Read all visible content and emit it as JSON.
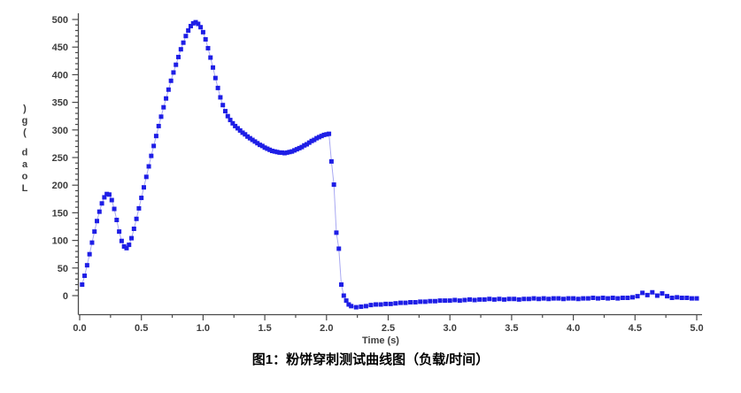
{
  "figure": {
    "caption": "图1：粉饼穿刺测试曲线图（负载/时间）"
  },
  "chart_data": {
    "type": "scatter",
    "title": "",
    "xlabel": "Time (s)",
    "ylabel": "Load (g)",
    "xlim": [
      0,
      5.0
    ],
    "ylim": [
      -37,
      507
    ],
    "x_tick_labels": [
      "0.0",
      "0.5",
      "1.0",
      "1.5",
      "2.0",
      "2.5",
      "3.0",
      "3.5",
      "4.0",
      "4.5",
      "5.0"
    ],
    "x_ticks": [
      0,
      0.5,
      1,
      1.5,
      2,
      2.5,
      3,
      3.5,
      4,
      4.5,
      5
    ],
    "x_minor_step": 0.25,
    "y_tick_labels": [
      "0",
      "50",
      "100",
      "150",
      "200",
      "250",
      "300",
      "350",
      "400",
      "450",
      "500"
    ],
    "y_ticks": [
      0,
      50,
      100,
      150,
      200,
      250,
      300,
      350,
      400,
      450,
      500
    ],
    "y_minor_step": 10,
    "grid": false,
    "legend": null,
    "marker": "square",
    "marker_color": "#1e1ee6",
    "line_color": "#a8a8f2",
    "axis_color": "#4a4a4a",
    "tick_label_color": "#3d3d3d",
    "points": [
      [
        0.02,
        20
      ],
      [
        0.04,
        36
      ],
      [
        0.06,
        55
      ],
      [
        0.08,
        75
      ],
      [
        0.1,
        96
      ],
      [
        0.12,
        116
      ],
      [
        0.14,
        135
      ],
      [
        0.16,
        152
      ],
      [
        0.18,
        167
      ],
      [
        0.2,
        178
      ],
      [
        0.22,
        184
      ],
      [
        0.24,
        183
      ],
      [
        0.26,
        173
      ],
      [
        0.28,
        157
      ],
      [
        0.3,
        137
      ],
      [
        0.32,
        116
      ],
      [
        0.34,
        99
      ],
      [
        0.36,
        89
      ],
      [
        0.38,
        86
      ],
      [
        0.4,
        92
      ],
      [
        0.42,
        104
      ],
      [
        0.44,
        121
      ],
      [
        0.46,
        139
      ],
      [
        0.48,
        158
      ],
      [
        0.5,
        177
      ],
      [
        0.52,
        196
      ],
      [
        0.54,
        215
      ],
      [
        0.56,
        234
      ],
      [
        0.58,
        253
      ],
      [
        0.6,
        271
      ],
      [
        0.62,
        289
      ],
      [
        0.64,
        307
      ],
      [
        0.66,
        324
      ],
      [
        0.68,
        341
      ],
      [
        0.7,
        357
      ],
      [
        0.72,
        373
      ],
      [
        0.74,
        389
      ],
      [
        0.76,
        404
      ],
      [
        0.78,
        418
      ],
      [
        0.8,
        432
      ],
      [
        0.82,
        446
      ],
      [
        0.84,
        458
      ],
      [
        0.86,
        470
      ],
      [
        0.88,
        480
      ],
      [
        0.9,
        488
      ],
      [
        0.92,
        493
      ],
      [
        0.94,
        495
      ],
      [
        0.96,
        492
      ],
      [
        0.98,
        486
      ],
      [
        1.0,
        477
      ],
      [
        1.02,
        464
      ],
      [
        1.04,
        448
      ],
      [
        1.06,
        431
      ],
      [
        1.08,
        413
      ],
      [
        1.1,
        394
      ],
      [
        1.12,
        376
      ],
      [
        1.14,
        359
      ],
      [
        1.16,
        345
      ],
      [
        1.18,
        334
      ],
      [
        1.2,
        325
      ],
      [
        1.22,
        318
      ],
      [
        1.24,
        312
      ],
      [
        1.26,
        307
      ],
      [
        1.28,
        303
      ],
      [
        1.3,
        299
      ],
      [
        1.32,
        295
      ],
      [
        1.34,
        292
      ],
      [
        1.36,
        288
      ],
      [
        1.38,
        285
      ],
      [
        1.4,
        282
      ],
      [
        1.42,
        279
      ],
      [
        1.44,
        276
      ],
      [
        1.46,
        273
      ],
      [
        1.48,
        271
      ],
      [
        1.5,
        268
      ],
      [
        1.52,
        266
      ],
      [
        1.54,
        264
      ],
      [
        1.56,
        262
      ],
      [
        1.58,
        261
      ],
      [
        1.6,
        260
      ],
      [
        1.62,
        259
      ],
      [
        1.64,
        259
      ],
      [
        1.66,
        258
      ],
      [
        1.68,
        259
      ],
      [
        1.7,
        260
      ],
      [
        1.72,
        261
      ],
      [
        1.74,
        263
      ],
      [
        1.76,
        265
      ],
      [
        1.78,
        267
      ],
      [
        1.8,
        269
      ],
      [
        1.82,
        272
      ],
      [
        1.84,
        274
      ],
      [
        1.86,
        277
      ],
      [
        1.88,
        280
      ],
      [
        1.9,
        282
      ],
      [
        1.92,
        285
      ],
      [
        1.94,
        287
      ],
      [
        1.96,
        289
      ],
      [
        1.98,
        291
      ],
      [
        2.0,
        292
      ],
      [
        2.02,
        293
      ],
      [
        2.04,
        243
      ],
      [
        2.06,
        201
      ],
      [
        2.08,
        114
      ],
      [
        2.1,
        85
      ],
      [
        2.12,
        20
      ],
      [
        2.14,
        0
      ],
      [
        2.16,
        -9
      ],
      [
        2.18,
        -16
      ],
      [
        2.2,
        -19
      ],
      [
        2.24,
        -21
      ],
      [
        2.28,
        -20
      ],
      [
        2.32,
        -19
      ],
      [
        2.36,
        -17
      ],
      [
        2.4,
        -16
      ],
      [
        2.44,
        -16
      ],
      [
        2.48,
        -15
      ],
      [
        2.52,
        -15
      ],
      [
        2.56,
        -14
      ],
      [
        2.6,
        -13
      ],
      [
        2.64,
        -13
      ],
      [
        2.68,
        -12
      ],
      [
        2.72,
        -12
      ],
      [
        2.76,
        -11
      ],
      [
        2.8,
        -11
      ],
      [
        2.84,
        -10
      ],
      [
        2.88,
        -10
      ],
      [
        2.92,
        -9
      ],
      [
        2.96,
        -9
      ],
      [
        3.0,
        -9
      ],
      [
        3.04,
        -8
      ],
      [
        3.08,
        -9
      ],
      [
        3.12,
        -8
      ],
      [
        3.16,
        -7
      ],
      [
        3.2,
        -8
      ],
      [
        3.24,
        -7
      ],
      [
        3.28,
        -7
      ],
      [
        3.32,
        -6
      ],
      [
        3.36,
        -7
      ],
      [
        3.4,
        -6
      ],
      [
        3.44,
        -7
      ],
      [
        3.48,
        -6
      ],
      [
        3.52,
        -6
      ],
      [
        3.56,
        -7
      ],
      [
        3.6,
        -6
      ],
      [
        3.64,
        -6
      ],
      [
        3.68,
        -5
      ],
      [
        3.72,
        -6
      ],
      [
        3.76,
        -5
      ],
      [
        3.8,
        -6
      ],
      [
        3.84,
        -5
      ],
      [
        3.88,
        -5
      ],
      [
        3.92,
        -6
      ],
      [
        3.96,
        -5
      ],
      [
        4.0,
        -5
      ],
      [
        4.04,
        -6
      ],
      [
        4.08,
        -5
      ],
      [
        4.12,
        -5
      ],
      [
        4.16,
        -4
      ],
      [
        4.2,
        -5
      ],
      [
        4.24,
        -4
      ],
      [
        4.28,
        -5
      ],
      [
        4.32,
        -4
      ],
      [
        4.36,
        -5
      ],
      [
        4.4,
        -4
      ],
      [
        4.44,
        -4
      ],
      [
        4.48,
        -3
      ],
      [
        4.52,
        -1
      ],
      [
        4.56,
        5
      ],
      [
        4.6,
        1
      ],
      [
        4.64,
        6
      ],
      [
        4.68,
        0
      ],
      [
        4.72,
        4
      ],
      [
        4.76,
        -1
      ],
      [
        4.8,
        -4
      ],
      [
        4.84,
        -3
      ],
      [
        4.88,
        -4
      ],
      [
        4.92,
        -4
      ],
      [
        4.96,
        -5
      ],
      [
        5.0,
        -5
      ]
    ]
  }
}
